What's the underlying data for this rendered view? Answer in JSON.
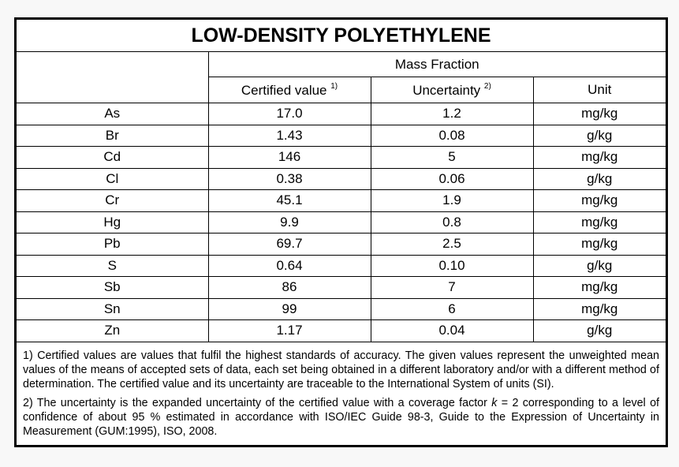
{
  "title": "LOW-DENSITY POLYETHYLENE",
  "group_header": "Mass Fraction",
  "columns": {
    "certified": "Certified value",
    "certified_note": "1)",
    "uncertainty": "Uncertainty",
    "uncertainty_note": "2)",
    "unit": "Unit"
  },
  "rows": [
    {
      "element": "As",
      "value": "17.0",
      "uncertainty": "1.2",
      "unit": "mg/kg"
    },
    {
      "element": "Br",
      "value": "1.43",
      "uncertainty": "0.08",
      "unit": "g/kg"
    },
    {
      "element": "Cd",
      "value": "146",
      "uncertainty": "5",
      "unit": "mg/kg"
    },
    {
      "element": "Cl",
      "value": "0.38",
      "uncertainty": "0.06",
      "unit": "g/kg"
    },
    {
      "element": "Cr",
      "value": "45.1",
      "uncertainty": "1.9",
      "unit": "mg/kg"
    },
    {
      "element": "Hg",
      "value": "9.9",
      "uncertainty": "0.8",
      "unit": "mg/kg"
    },
    {
      "element": "Pb",
      "value": "69.7",
      "uncertainty": "2.5",
      "unit": "mg/kg"
    },
    {
      "element": "S",
      "value": "0.64",
      "uncertainty": "0.10",
      "unit": "g/kg"
    },
    {
      "element": "Sb",
      "value": "86",
      "uncertainty": "7",
      "unit": "mg/kg"
    },
    {
      "element": "Sn",
      "value": "99",
      "uncertainty": "6",
      "unit": "mg/kg"
    },
    {
      "element": "Zn",
      "value": "1.17",
      "uncertainty": "0.04",
      "unit": "g/kg"
    }
  ],
  "notes": {
    "note1": "1) Certified values are values that fulfil the highest standards of accuracy. The given values represent the unweighted mean values of the means of accepted sets of data, each set being obtained in a different laboratory and/or with a different method of determination. The certified value and its uncertainty are traceable to the International System of units (SI).",
    "note2_pre": "2) The uncertainty is the expanded uncertainty of the certified value with a coverage factor ",
    "note2_k": "k",
    "note2_post": " = 2 corresponding to a level of confidence of about 95 % estimated in accordance with ISO/IEC Guide 98-3, Guide to the Expression of Uncertainty in Measurement (GUM:1995), ISO, 2008."
  }
}
